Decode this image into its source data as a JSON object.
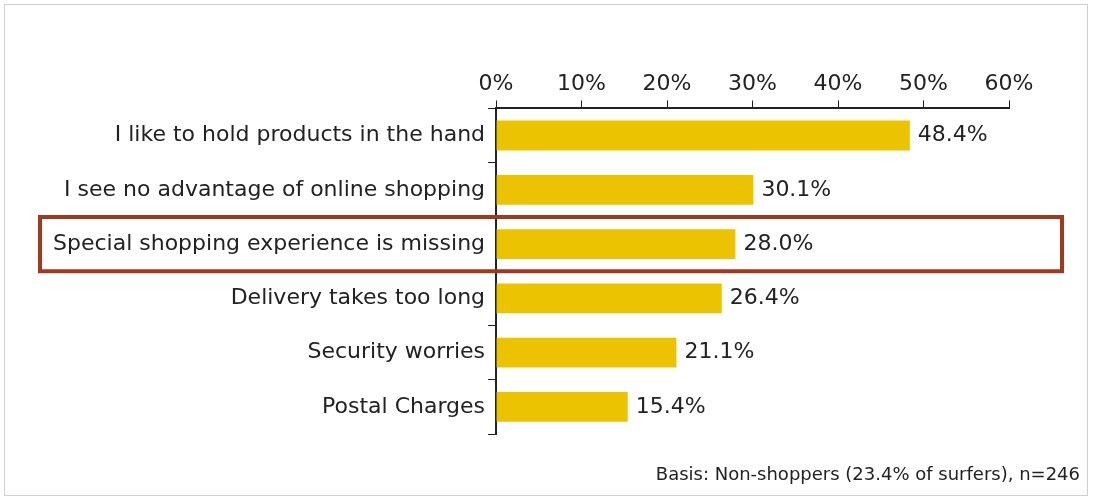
{
  "chart_data": {
    "type": "bar",
    "orientation": "horizontal",
    "categories": [
      "I like to hold products in the hand",
      "I see no advantage of online shopping",
      "Special shopping experience is missing",
      "Delivery takes too long",
      "Security worries",
      "Postal Charges"
    ],
    "values": [
      48.4,
      30.1,
      28.0,
      26.4,
      21.1,
      15.4
    ],
    "value_labels": [
      "48.4%",
      "30.1%",
      "28.0%",
      "26.4%",
      "21.1%",
      "15.4%"
    ],
    "color": "#ebc300",
    "xlim": [
      0,
      60
    ],
    "xticks": [
      {
        "value": 0,
        "label": "0%"
      },
      {
        "value": 10,
        "label": "10%"
      },
      {
        "value": 20,
        "label": "20%"
      },
      {
        "value": 30,
        "label": "30%"
      },
      {
        "value": 40,
        "label": "40%"
      },
      {
        "value": 50,
        "label": "50%"
      },
      {
        "value": 60,
        "label": "60%"
      }
    ],
    "grid": false,
    "legend": false,
    "annotations": [
      "Basis: Non-shoppers (23.4% of surfers), n=246"
    ]
  }
}
